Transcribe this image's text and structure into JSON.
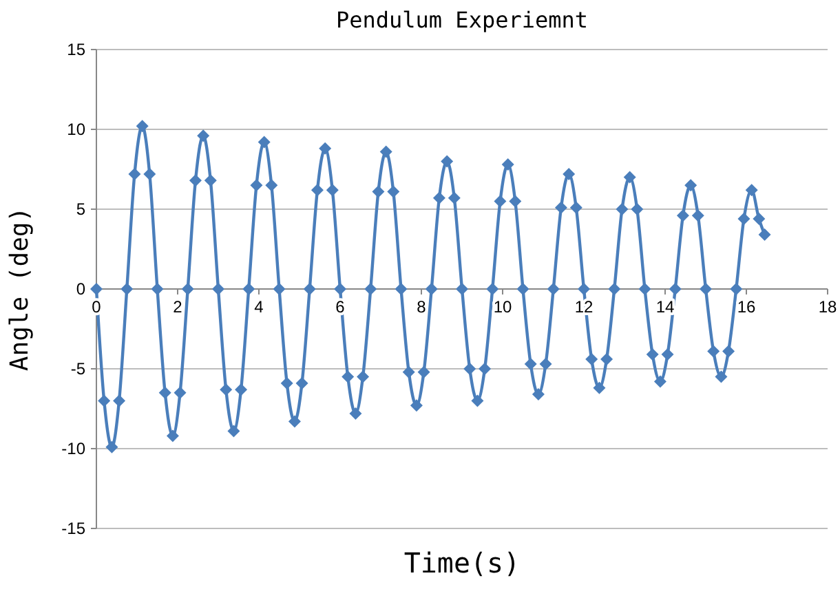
{
  "chart_data": {
    "type": "line",
    "title": "Pendulum Experiemnt",
    "xlabel": "Time(s)",
    "ylabel": "Angle (deg)",
    "xlim": [
      0,
      18
    ],
    "xticks": [
      0,
      2,
      4,
      6,
      8,
      10,
      12,
      14,
      16,
      18
    ],
    "ylim": [
      -15,
      15
    ],
    "yticks": [
      -15,
      -10,
      -5,
      0,
      5,
      10,
      15
    ],
    "grid": "y",
    "marker": "diamond",
    "line_style": "solid",
    "series": [
      {
        "color": "#4a7ebb",
        "x": [
          0,
          0.19,
          0.38,
          0.56,
          0.75,
          0.94,
          1.13,
          1.31,
          1.5,
          1.69,
          1.88,
          2.06,
          2.25,
          2.44,
          2.63,
          2.81,
          3.0,
          3.19,
          3.38,
          3.56,
          3.75,
          3.94,
          4.13,
          4.31,
          4.5,
          4.69,
          4.88,
          5.06,
          5.25,
          5.44,
          5.63,
          5.81,
          6.0,
          6.19,
          6.38,
          6.56,
          6.75,
          6.94,
          7.13,
          7.31,
          7.5,
          7.69,
          7.88,
          8.06,
          8.25,
          8.44,
          8.63,
          8.81,
          9.0,
          9.19,
          9.38,
          9.56,
          9.75,
          9.94,
          10.13,
          10.31,
          10.5,
          10.69,
          10.88,
          11.06,
          11.25,
          11.44,
          11.63,
          11.81,
          12.0,
          12.19,
          12.38,
          12.56,
          12.75,
          12.94,
          13.13,
          13.31,
          13.5,
          13.69,
          13.88,
          14.06,
          14.25,
          14.44,
          14.63,
          14.81,
          15.0,
          15.19,
          15.38,
          15.56,
          15.75,
          15.94,
          16.13,
          16.31,
          16.45
        ],
        "values": [
          0,
          -7,
          -9.9,
          -7,
          0,
          7.2,
          10.2,
          7.2,
          0,
          -6.5,
          -9.2,
          -6.5,
          0,
          6.8,
          9.6,
          6.8,
          0,
          -6.3,
          -8.9,
          -6.3,
          0,
          6.5,
          9.2,
          6.5,
          0,
          -5.9,
          -8.3,
          -5.9,
          0,
          6.2,
          8.8,
          6.2,
          0,
          -5.5,
          -7.8,
          -5.5,
          0,
          6.1,
          8.6,
          6.1,
          0,
          -5.2,
          -7.3,
          -5.2,
          0,
          5.7,
          8,
          5.7,
          0,
          -5,
          -7,
          -5,
          0,
          5.5,
          7.8,
          5.5,
          0,
          -4.7,
          -6.6,
          -4.7,
          0,
          5.1,
          7.2,
          5.1,
          0,
          -4.4,
          -6.2,
          -4.4,
          0,
          5,
          7,
          5,
          0,
          -4.1,
          -5.8,
          -4.1,
          0,
          4.6,
          6.5,
          4.6,
          0,
          -3.9,
          -5.5,
          -3.9,
          0,
          4.4,
          6.2,
          4.4,
          3.4
        ]
      }
    ]
  }
}
